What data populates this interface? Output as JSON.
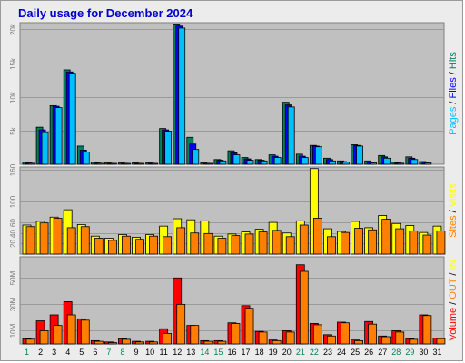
{
  "title": "Daily usage for December 2024",
  "colors": {
    "hits": "#00805c",
    "files": "#0000ff",
    "pages": "#00c0ff",
    "visits": "#ffff00",
    "sites": "#ff8000",
    "kbytes": "#ff0000",
    "in": "#ffff00",
    "out": "#ff8000",
    "weekday_label": "#000080",
    "weekend_label": "#00805c",
    "today_label": "#00805c"
  },
  "chart_data": [
    {
      "type": "bar",
      "name": "hits-files-pages",
      "categories": [
        "1",
        "2",
        "3",
        "4",
        "5",
        "6",
        "7",
        "8",
        "9",
        "10",
        "11",
        "12",
        "13",
        "14",
        "15",
        "16",
        "17",
        "18",
        "19",
        "20",
        "21",
        "22",
        "23",
        "24",
        "25",
        "26",
        "27",
        "28",
        "29",
        "30",
        "31"
      ],
      "weekend": [
        "1",
        "7",
        "8",
        "14",
        "15",
        "21",
        "22",
        "28",
        "29"
      ],
      "ylim": [
        0,
        21000
      ],
      "yticks": [
        {
          "value": 5000,
          "label": "5k"
        },
        {
          "value": 10000,
          "label": "10k"
        },
        {
          "value": 15000,
          "label": "15k"
        },
        {
          "value": 20000,
          "label": "20k"
        }
      ],
      "ylabel_parts": [
        {
          "text": "Pages",
          "color": "#00c0ff"
        },
        {
          "text": " / ",
          "color": "#000000"
        },
        {
          "text": "Files",
          "color": "#0000ff"
        },
        {
          "text": " / ",
          "color": "#000000"
        },
        {
          "text": "Hits",
          "color": "#00805c"
        }
      ],
      "series": [
        {
          "name": "Hits",
          "values": [
            300,
            5500,
            8700,
            14000,
            2700,
            300,
            200,
            200,
            200,
            200,
            5300,
            20800,
            4000,
            200,
            700,
            2000,
            1000,
            700,
            1400,
            9200,
            1500,
            2800,
            900,
            500,
            2900,
            500,
            1300,
            300,
            1100,
            400,
            0
          ]
        },
        {
          "name": "Files",
          "values": [
            200,
            5100,
            8600,
            13700,
            2100,
            200,
            150,
            150,
            150,
            150,
            5100,
            20500,
            3000,
            150,
            600,
            1700,
            800,
            600,
            1200,
            8800,
            1200,
            2700,
            700,
            400,
            2800,
            300,
            1100,
            200,
            900,
            300,
            0
          ]
        },
        {
          "name": "Pages",
          "values": [
            150,
            4700,
            8400,
            13500,
            1800,
            150,
            100,
            100,
            100,
            100,
            4900,
            20200,
            2200,
            100,
            500,
            1400,
            600,
            500,
            1000,
            8500,
            1000,
            2600,
            500,
            300,
            2700,
            200,
            900,
            150,
            700,
            200,
            0
          ]
        }
      ]
    },
    {
      "type": "bar",
      "name": "visits-sites",
      "categories": [
        "1",
        "2",
        "3",
        "4",
        "5",
        "6",
        "7",
        "8",
        "9",
        "10",
        "11",
        "12",
        "13",
        "14",
        "15",
        "16",
        "17",
        "18",
        "19",
        "20",
        "21",
        "22",
        "23",
        "24",
        "25",
        "26",
        "27",
        "28",
        "29",
        "30",
        "31"
      ],
      "ylim": [
        0,
        165
      ],
      "yticks": [
        {
          "value": 20,
          "label": "20"
        },
        {
          "value": 40,
          "label": "40"
        },
        {
          "value": 60,
          "label": "60"
        },
        {
          "value": 100,
          "label": "100"
        },
        {
          "value": 160,
          "label": "160"
        }
      ],
      "ylabel_parts": [
        {
          "text": "Sites",
          "color": "#ff8000"
        },
        {
          "text": " / ",
          "color": "#000000"
        },
        {
          "text": "Visits",
          "color": "#ffff00"
        }
      ],
      "series": [
        {
          "name": "Visits",
          "values": [
            55,
            62,
            70,
            84,
            56,
            34,
            30,
            37,
            32,
            37,
            53,
            67,
            65,
            63,
            34,
            38,
            42,
            47,
            60,
            40,
            63,
            162,
            48,
            43,
            62,
            50,
            73,
            58,
            54,
            41,
            53
          ]
        },
        {
          "name": "Sites",
          "values": [
            52,
            59,
            68,
            50,
            52,
            30,
            26,
            34,
            28,
            34,
            33,
            50,
            40,
            39,
            30,
            35,
            38,
            42,
            45,
            33,
            55,
            68,
            33,
            41,
            49,
            46,
            66,
            48,
            44,
            36,
            44
          ]
        }
      ]
    },
    {
      "type": "bar",
      "name": "volume",
      "categories": [
        "1",
        "2",
        "3",
        "4",
        "5",
        "6",
        "7",
        "8",
        "9",
        "10",
        "11",
        "12",
        "13",
        "14",
        "15",
        "16",
        "17",
        "18",
        "19",
        "20",
        "21",
        "22",
        "23",
        "24",
        "25",
        "26",
        "27",
        "28",
        "29",
        "30",
        "31"
      ],
      "ylim": [
        0,
        66000000
      ],
      "yticks": [
        {
          "value": 10000000,
          "label": "10M"
        },
        {
          "value": 30000000,
          "label": "30M"
        },
        {
          "value": 50000000,
          "label": "50M"
        }
      ],
      "ylabel_parts": [
        {
          "text": "Volume",
          "color": "#ff0000"
        },
        {
          "text": " / ",
          "color": "#000000"
        },
        {
          "text": "OUT",
          "color": "#ff8000"
        },
        {
          "text": " / ",
          "color": "#000000"
        },
        {
          "text": "IN",
          "color": "#ffff00"
        }
      ],
      "series": [
        {
          "name": "Volume",
          "values": [
            4000000,
            17500000,
            22000000,
            32000000,
            19000000,
            2500000,
            1500000,
            4000000,
            2000000,
            2000000,
            11500000,
            50000000,
            14000000,
            2500000,
            2500000,
            16000000,
            29000000,
            9500000,
            3000000,
            10000000,
            60000000,
            15500000,
            7000000,
            16500000,
            3000000,
            17000000,
            6000000,
            10000000,
            4000000,
            22000000,
            4500000
          ]
        },
        {
          "name": "OUT",
          "values": [
            3600000,
            10000000,
            14000000,
            22000000,
            18000000,
            2000000,
            1000000,
            3500000,
            1500000,
            1500000,
            8000000,
            30000000,
            14000000,
            2000000,
            2000000,
            15500000,
            27000000,
            9000000,
            2500000,
            9000000,
            55000000,
            14500000,
            6000000,
            16000000,
            2500000,
            15000000,
            5500000,
            9000000,
            3500000,
            21500000,
            4000000
          ]
        }
      ]
    }
  ]
}
